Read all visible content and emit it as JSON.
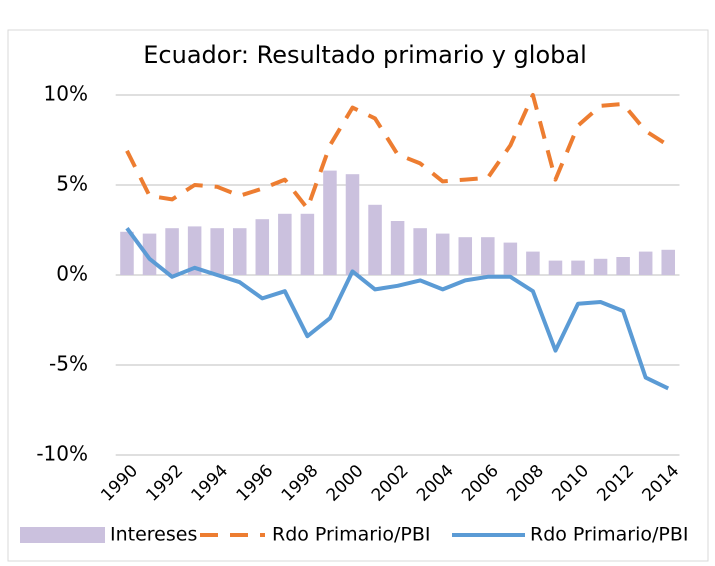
{
  "chart_data": {
    "type": "combo",
    "title": "Ecuador: Resultado primario y global",
    "categories": [
      "1990",
      null,
      "1992",
      null,
      "1994",
      null,
      "1996",
      null,
      "1998",
      null,
      "2000",
      null,
      "2002",
      null,
      "2004",
      null,
      "2006",
      null,
      "2008",
      null,
      "2010",
      null,
      "2012",
      null,
      "2014"
    ],
    "series": [
      {
        "name": "Intereses",
        "type": "bar",
        "color": "#cbc1de",
        "values": [
          2.4,
          2.3,
          2.6,
          2.7,
          2.6,
          2.6,
          3.1,
          3.4,
          3.4,
          5.8,
          5.6,
          3.9,
          3.0,
          2.6,
          2.3,
          2.1,
          2.1,
          1.8,
          1.3,
          0.8,
          0.8,
          0.9,
          1.0,
          1.3,
          1.4
        ]
      },
      {
        "name": "Rdo Primario/PBI",
        "type": "line",
        "dashed": true,
        "color": "#ed7d31",
        "values": [
          6.9,
          4.4,
          4.2,
          5.0,
          4.9,
          4.4,
          4.8,
          5.3,
          3.7,
          7.2,
          9.3,
          8.7,
          6.7,
          6.2,
          5.2,
          5.3,
          5.4,
          7.2,
          10.0,
          5.3,
          8.3,
          9.4,
          9.5,
          8.0,
          7.2
        ]
      },
      {
        "name": "Rdo Primario/PBI",
        "type": "line",
        "dashed": false,
        "color": "#5b9bd5",
        "values": [
          2.6,
          0.9,
          -0.1,
          0.4,
          0.0,
          -0.4,
          -1.3,
          -0.9,
          -3.4,
          -2.4,
          0.2,
          -0.8,
          -0.6,
          -0.3,
          -0.8,
          -0.3,
          -0.1,
          -0.1,
          -0.9,
          -4.2,
          -1.6,
          -1.5,
          -2.0,
          -5.7,
          -6.3
        ]
      }
    ],
    "ylim": [
      -10,
      10
    ],
    "yticks": [
      {
        "value": -10,
        "label": "-10%"
      },
      {
        "value": -5,
        "label": "-5%"
      },
      {
        "value": 0,
        "label": "0%"
      },
      {
        "value": 5,
        "label": "5%"
      },
      {
        "value": 10,
        "label": "10%"
      }
    ],
    "grid": true,
    "legend": "bottom"
  }
}
